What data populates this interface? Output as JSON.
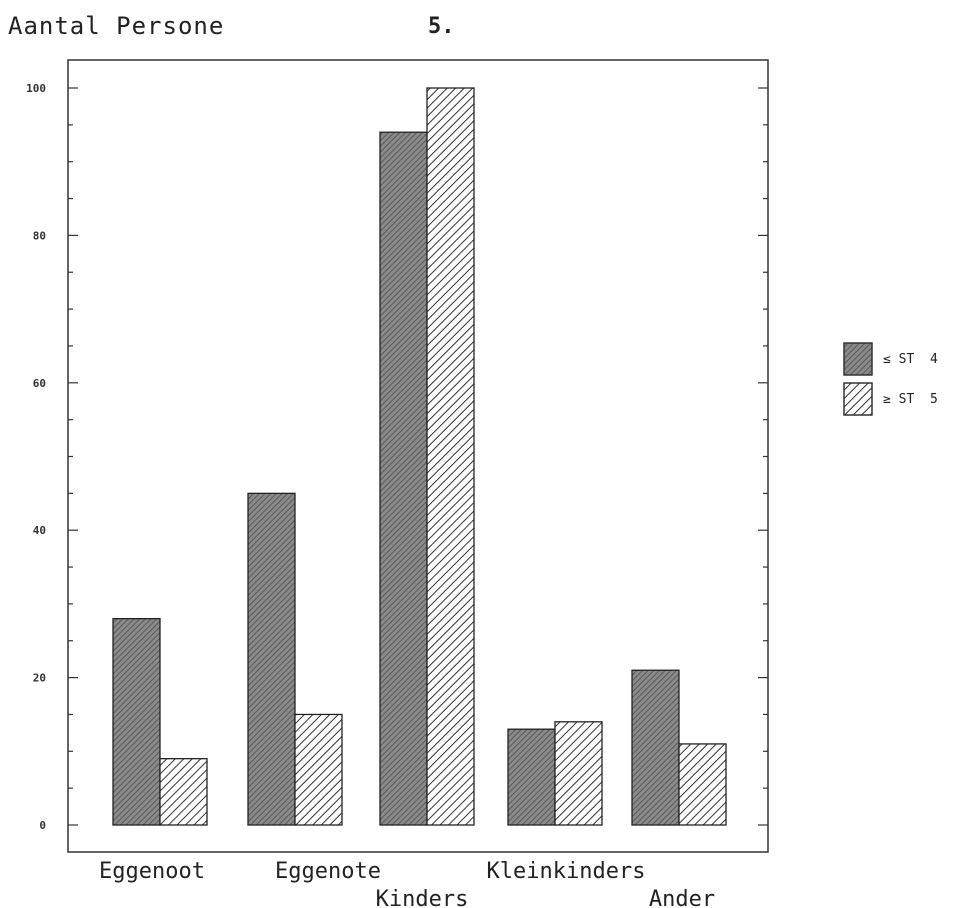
{
  "chart_data": {
    "type": "bar",
    "ylabel": "Aantal Persone",
    "page_number": "5.",
    "categories": [
      "Eggenoot",
      "Eggenote",
      "Kinders",
      "Kleinkinders",
      "Ander"
    ],
    "series": [
      {
        "name": "≤ ST  4",
        "values": [
          28,
          45,
          94,
          13,
          21
        ],
        "pattern": "stipple"
      },
      {
        "name": "≥ ST  5",
        "values": [
          9,
          15,
          100,
          14,
          11
        ],
        "pattern": "hatch"
      }
    ],
    "ylim": [
      0,
      100
    ],
    "yticks": [
      0,
      20,
      40,
      60,
      80,
      100
    ],
    "ytick_labels": [
      "0",
      "20",
      "40",
      "60",
      "80",
      "100"
    ],
    "grid": false,
    "legend_position": "right"
  }
}
